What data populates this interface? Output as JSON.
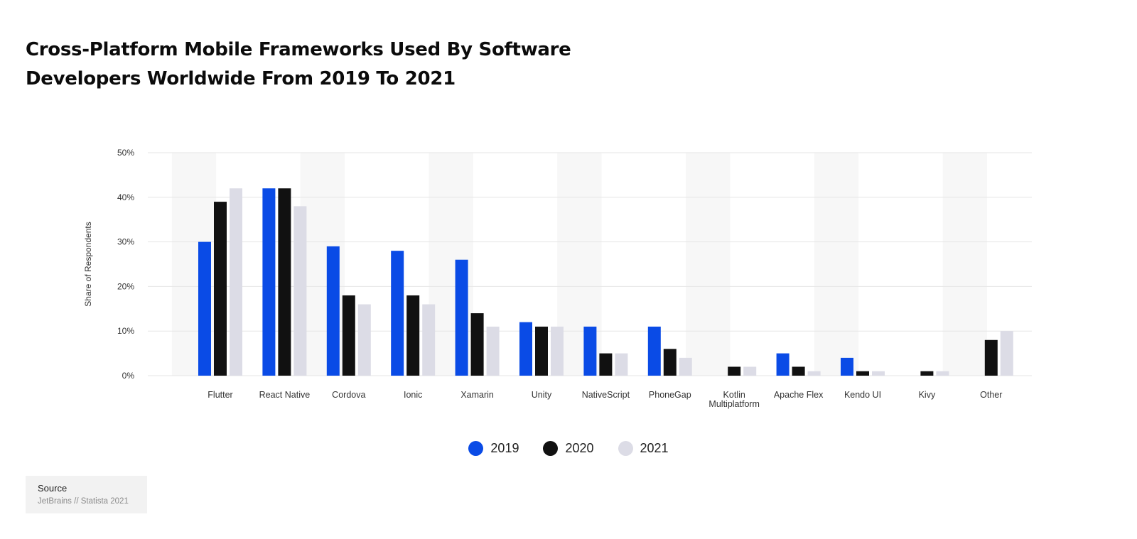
{
  "title_line1": "Cross-Platform Mobile Frameworks Used By Software",
  "title_line2": "Developers Worldwide From 2019 To 2021",
  "source": {
    "title": "Source",
    "text": "JetBrains // Statista 2021"
  },
  "colors": {
    "2019": "#0a4be6",
    "2020": "#111111",
    "2021": "#dcdce6",
    "band": "#f7f7f7",
    "grid": "#e6e6e6"
  },
  "chart_data": {
    "type": "bar",
    "title": "Cross-Platform Mobile Frameworks Used By Software Developers Worldwide From 2019 To 2021",
    "xlabel": "",
    "ylabel": "Share of Respondents",
    "ylim": [
      0,
      50
    ],
    "yticks": [
      0,
      10,
      20,
      30,
      40,
      50
    ],
    "ytick_labels": [
      "0%",
      "10%",
      "20%",
      "30%",
      "40%",
      "50%"
    ],
    "grid": true,
    "legend_position": "bottom-center",
    "categories": [
      "Flutter",
      "React Native",
      "Cordova",
      "Ionic",
      "Xamarin",
      "Unity",
      "NativeScript",
      "PhoneGap",
      "Kotlin Multiplatform",
      "Apache Flex",
      "Kendo UI",
      "Kivy",
      "Other"
    ],
    "series": [
      {
        "name": "2019",
        "color": "#0a4be6",
        "values": [
          30,
          42,
          29,
          28,
          26,
          12,
          11,
          11,
          0,
          5,
          4,
          0,
          0
        ]
      },
      {
        "name": "2020",
        "color": "#111111",
        "values": [
          39,
          42,
          18,
          18,
          14,
          11,
          5,
          6,
          2,
          2,
          1,
          1,
          8
        ]
      },
      {
        "name": "2021",
        "color": "#dcdce6",
        "values": [
          42,
          38,
          16,
          16,
          11,
          11,
          5,
          4,
          2,
          1,
          1,
          1,
          10
        ]
      }
    ]
  }
}
